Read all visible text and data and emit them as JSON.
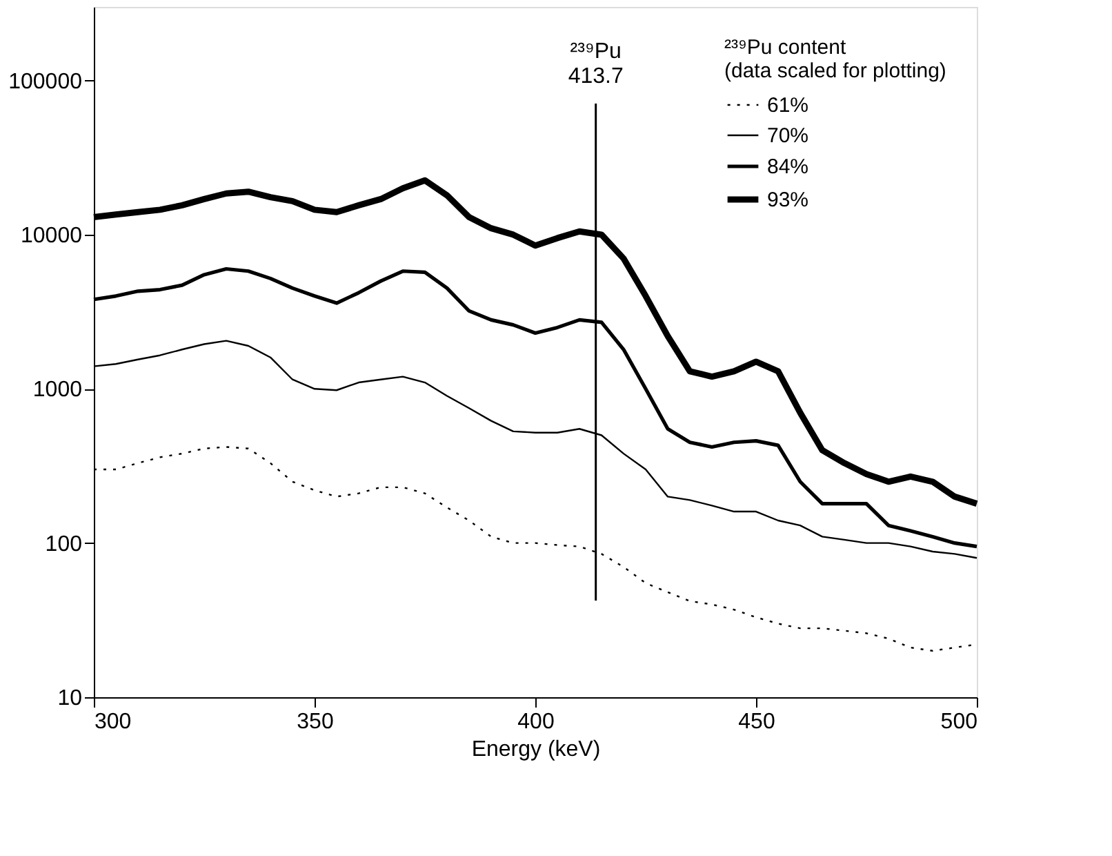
{
  "chart_data": {
    "type": "line",
    "xlabel": "Energy (keV)",
    "legend_title": "²³⁹Pu content\n(data scaled for plotting)",
    "x": [
      300,
      305,
      310,
      315,
      320,
      325,
      330,
      335,
      340,
      345,
      350,
      355,
      360,
      365,
      370,
      375,
      380,
      385,
      390,
      395,
      400,
      405,
      410,
      415,
      420,
      425,
      430,
      435,
      440,
      445,
      450,
      455,
      460,
      465,
      470,
      475,
      480,
      485,
      490,
      495,
      500
    ],
    "series": [
      {
        "name": "61%",
        "color": "#000000",
        "line_style": "dotted",
        "values": [
          300,
          300,
          330,
          360,
          380,
          410,
          420,
          410,
          330,
          250,
          220,
          200,
          210,
          230,
          230,
          210,
          170,
          140,
          110,
          100,
          100,
          97,
          95,
          85,
          70,
          55,
          48,
          42,
          40,
          37,
          33,
          30,
          28,
          28,
          27,
          26,
          24,
          21,
          20,
          21,
          22
        ]
      },
      {
        "name": "70%",
        "color": "#000000",
        "line_style": "solid",
        "values": [
          1400,
          1450,
          1550,
          1650,
          1800,
          1950,
          2050,
          1900,
          1600,
          1150,
          1000,
          980,
          1100,
          1150,
          1200,
          1100,
          900,
          750,
          620,
          530,
          520,
          520,
          550,
          500,
          380,
          300,
          200,
          190,
          175,
          160,
          160,
          140,
          130,
          110,
          105,
          100,
          100,
          95,
          88,
          85,
          80
        ]
      },
      {
        "name": "84%",
        "color": "#000000",
        "line_style": "solid",
        "values": [
          3800,
          4000,
          4300,
          4400,
          4700,
          5500,
          6000,
          5800,
          5200,
          4500,
          4000,
          3600,
          4200,
          5000,
          5800,
          5700,
          4500,
          3200,
          2800,
          2600,
          2300,
          2500,
          2800,
          2700,
          1800,
          1000,
          550,
          450,
          420,
          450,
          460,
          430,
          250,
          180,
          180,
          180,
          130,
          120,
          110,
          100,
          95
        ]
      },
      {
        "name": "93%",
        "color": "#000000",
        "line_style": "solid",
        "values": [
          13000,
          13500,
          14000,
          14500,
          15500,
          17000,
          18500,
          19000,
          17500,
          16500,
          14500,
          14000,
          15500,
          17000,
          20000,
          22500,
          18000,
          13000,
          11000,
          10000,
          8500,
          9500,
          10500,
          10000,
          7000,
          4000,
          2200,
          1300,
          1200,
          1300,
          1500,
          1300,
          700,
          400,
          330,
          280,
          250,
          270,
          250,
          200,
          180
        ]
      }
    ],
    "xlim": [
      300,
      500
    ],
    "xticks": [
      300,
      350,
      400,
      450,
      500
    ],
    "ylim": [
      10,
      300000
    ],
    "yticks": [
      10,
      100,
      1000,
      10000,
      100000
    ],
    "log": true,
    "ref_lines": [
      {
        "axis": "x",
        "value": 413.7,
        "label": "²³⁹Pu\n413.7"
      }
    ],
    "grid": false,
    "legend": "top right"
  }
}
